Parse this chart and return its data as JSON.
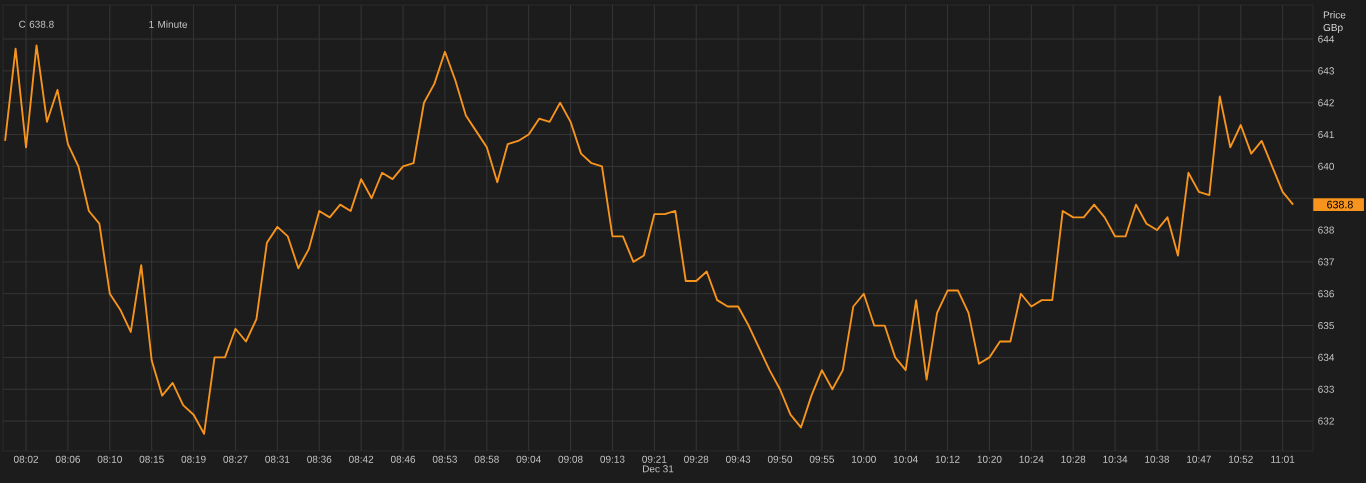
{
  "chart_data": {
    "type": "line",
    "xlabel": "Dec 31",
    "ylabel": "Price GBp",
    "categories": [
      null,
      null,
      "08:02",
      null,
      null,
      null,
      "08:06",
      null,
      null,
      null,
      "08:10",
      null,
      null,
      null,
      "08:15",
      null,
      null,
      null,
      "08:19",
      null,
      null,
      null,
      "08:27",
      null,
      null,
      null,
      "08:31",
      null,
      null,
      null,
      "08:36",
      null,
      null,
      null,
      "08:42",
      null,
      null,
      null,
      "08:46",
      null,
      null,
      null,
      "08:53",
      null,
      null,
      null,
      "08:58",
      null,
      null,
      null,
      "09:04",
      null,
      null,
      null,
      "09:08",
      null,
      null,
      null,
      "09:13",
      null,
      null,
      null,
      "09:21",
      null,
      null,
      null,
      "09:28",
      null,
      null,
      null,
      "09:43",
      null,
      null,
      null,
      "09:50",
      null,
      null,
      null,
      "09:55",
      null,
      null,
      null,
      "10:00",
      null,
      null,
      null,
      "10:04",
      null,
      null,
      null,
      "10:12",
      null,
      null,
      null,
      "10:20",
      null,
      null,
      null,
      "10:24",
      null,
      null,
      null,
      "10:28",
      null,
      null,
      null,
      "10:34",
      null,
      null,
      null,
      "10:38",
      null,
      null,
      null,
      "10:47",
      null,
      null,
      null,
      "10:52",
      null,
      null,
      null,
      "11:01",
      null
    ],
    "series": [
      {
        "color": "#f7941d",
        "values": [
          640.8,
          643.7,
          640.6,
          643.8,
          641.4,
          642.4,
          640.7,
          640.0,
          638.6,
          638.2,
          636.0,
          635.5,
          634.8,
          636.9,
          633.9,
          632.8,
          633.2,
          632.5,
          632.2,
          631.6,
          634.0,
          634.0,
          634.9,
          634.5,
          635.2,
          637.6,
          638.1,
          637.8,
          636.8,
          637.4,
          638.6,
          638.4,
          638.8,
          638.6,
          639.6,
          639.0,
          639.8,
          639.6,
          640.0,
          640.1,
          642.0,
          642.6,
          643.6,
          642.7,
          641.6,
          641.1,
          640.6,
          639.5,
          640.7,
          640.8,
          641.0,
          641.5,
          641.4,
          642.0,
          641.4,
          640.4,
          640.1,
          640.0,
          637.8,
          637.8,
          637.0,
          637.2,
          638.5,
          638.5,
          638.6,
          636.4,
          636.4,
          636.7,
          635.8,
          635.6,
          635.6,
          635.0,
          634.3,
          633.6,
          633.0,
          632.2,
          631.8,
          632.8,
          633.6,
          633.0,
          633.6,
          635.6,
          636.0,
          635.0,
          635.0,
          634.0,
          633.6,
          635.8,
          633.3,
          635.4,
          636.1,
          636.1,
          635.4,
          633.8,
          634.0,
          634.5,
          634.5,
          636.0,
          635.6,
          635.8,
          635.8,
          638.6,
          638.4,
          638.4,
          638.8,
          638.4,
          637.8,
          637.8,
          638.8,
          638.2,
          638.0,
          638.4,
          637.2,
          639.8,
          639.2,
          639.1,
          642.2,
          640.6,
          641.3,
          640.4,
          640.8,
          640.0,
          639.2,
          638.8
        ]
      }
    ],
    "ylim": [
      631.06,
      645.07
    ],
    "yticks": [
      632,
      633,
      634,
      635,
      636,
      637,
      638,
      {
        "value": 639,
        "label": null
      },
      640,
      641,
      642,
      643,
      644
    ],
    "grid": true,
    "annotations": [
      "C 638.8",
      "1 Minute",
      "638.8"
    ]
  }
}
